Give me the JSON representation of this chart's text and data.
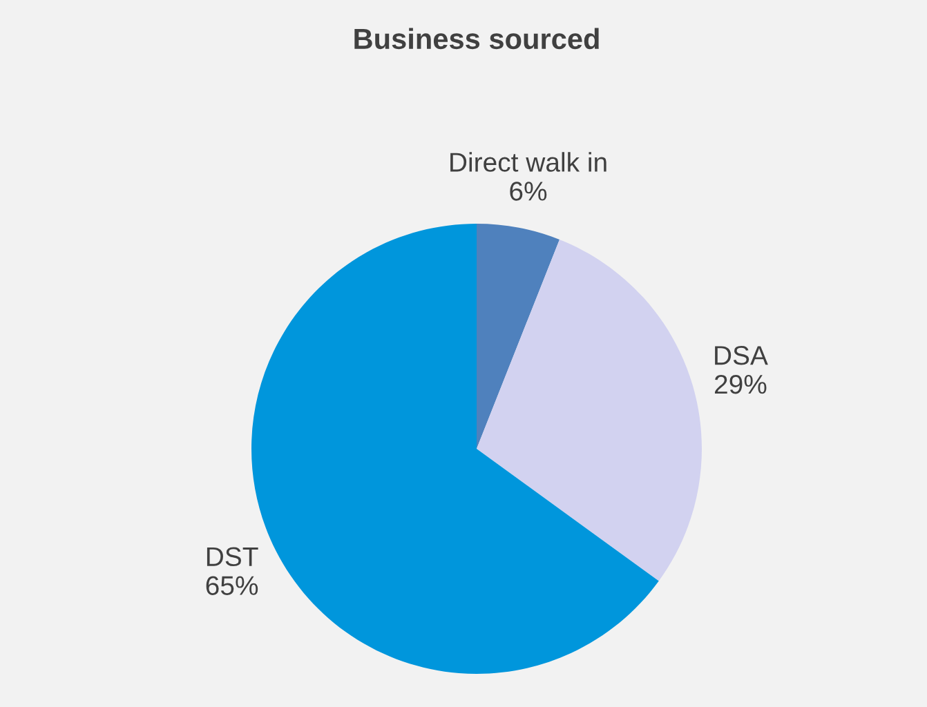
{
  "chart_data": {
    "type": "pie",
    "title": "Business sourced",
    "categories": [
      "Direct walk in",
      "DSA",
      "DST"
    ],
    "values": [
      6,
      29,
      65
    ],
    "value_labels": [
      "6%",
      "29%",
      "65%"
    ],
    "colors": [
      "#4f81bd",
      "#d2d2f0",
      "#0096dc"
    ],
    "legend": false
  }
}
